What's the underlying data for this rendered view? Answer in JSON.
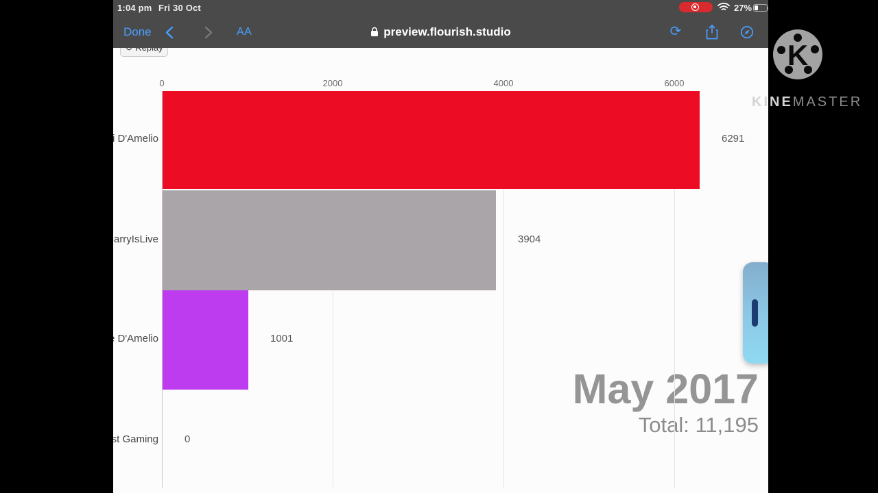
{
  "status_bar": {
    "time": "1:04 pm",
    "date": "Fri 30 Oct",
    "battery_percent": "27%"
  },
  "nav_bar": {
    "done_label": "Done",
    "font_size_label": "AA",
    "url": "preview.flourish.studio"
  },
  "toolbar": {
    "replay_label": "Replay",
    "replay_icon": "↻"
  },
  "chart_data": {
    "type": "bar",
    "orientation": "horizontal",
    "categories": [
      "rli D'Amelio",
      "CarryIsLive",
      "ie D'Amelio",
      "ast Gaming"
    ],
    "values": [
      6291,
      3904,
      1001,
      0
    ],
    "value_labels": [
      "6291",
      "3904",
      "1001",
      "0"
    ],
    "bar_colors": [
      "#ec0c24",
      "#aaa5a8",
      "#bd3cf0",
      null
    ],
    "x_ticks": [
      0,
      2000,
      4000,
      6000
    ],
    "tick_labels": [
      "0",
      "2000",
      "4000",
      "6000"
    ],
    "xlim": [
      0,
      6000
    ],
    "grid": "vertical",
    "date_label": "May 2017",
    "total_label": "Total: 11,195"
  },
  "watermark": {
    "logo_letter": "K",
    "brand_bold": "KINE",
    "brand_light": "MASTER"
  },
  "colors": {
    "header_bg": "#4a4a4b",
    "ios_blue": "#4a9eff",
    "record_red": "#d92a2e",
    "bar_red": "#ec0c24",
    "bar_gray": "#aaa5a8",
    "bar_purple": "#bd3cf0",
    "big_text_gray": "#959595"
  }
}
